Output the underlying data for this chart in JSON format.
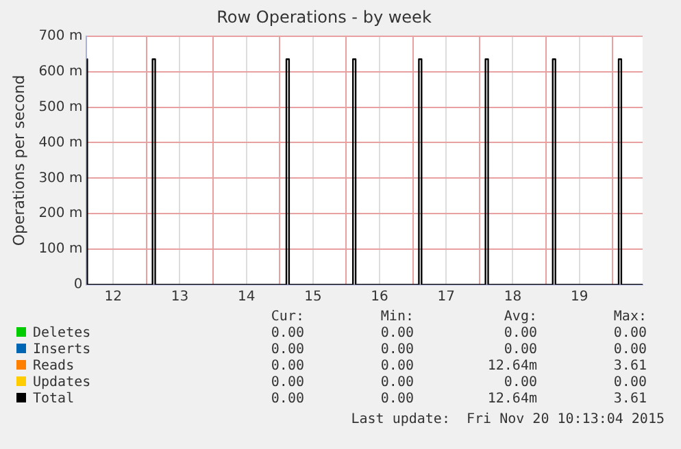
{
  "chart_data": {
    "type": "line",
    "title": "Row Operations - by week",
    "ylabel": "Operations per second",
    "xlim": [
      11.6,
      19.95
    ],
    "xticks": [
      12,
      {
        "value": 12.5,
        "label": null
      },
      13,
      {
        "value": 13.5,
        "label": null
      },
      14,
      {
        "value": 14.5,
        "label": null
      },
      15,
      {
        "value": 15.5,
        "label": null
      },
      16,
      {
        "value": 16.5,
        "label": null
      },
      17,
      {
        "value": 17.5,
        "label": null
      },
      18,
      {
        "value": 18.5,
        "label": null
      },
      19,
      {
        "value": 19.5,
        "label": null
      }
    ],
    "ylim": [
      0,
      700
    ],
    "yticks": [
      0,
      {
        "value": 100,
        "label": "100 m"
      },
      {
        "value": 200,
        "label": "200 m"
      },
      {
        "value": 300,
        "label": "300 m"
      },
      {
        "value": 400,
        "label": "400 m"
      },
      {
        "value": 500,
        "label": "500 m"
      },
      {
        "value": 600,
        "label": "600 m"
      },
      {
        "value": 700,
        "label": "700 m"
      }
    ],
    "grid": true,
    "legend": "bottom",
    "marker": "none",
    "line_style": "solid",
    "series": [
      {
        "name": "Deletes",
        "color": "#00cc00"
      },
      {
        "name": "Inserts",
        "color": "#0066b3"
      },
      {
        "name": "Reads",
        "color": "#ff8000"
      },
      {
        "name": "Updates",
        "color": "#ffcc00"
      },
      {
        "name": "Total",
        "color": "#000000",
        "x": [
          11.6,
          11.61,
          11.61,
          12.59,
          12.59,
          12.63,
          12.63,
          14.6,
          14.6,
          14.64,
          14.64,
          15.6,
          15.6,
          15.64,
          15.64,
          16.59,
          16.59,
          16.63,
          16.63,
          17.59,
          17.59,
          17.63,
          17.63,
          18.6,
          18.6,
          18.64,
          18.64,
          19.59,
          19.59,
          19.63,
          19.63,
          19.95
        ],
        "values": [
          635,
          635,
          0,
          0,
          635,
          635,
          0,
          0,
          635,
          635,
          0,
          0,
          635,
          635,
          0,
          0,
          635,
          635,
          0,
          0,
          635,
          635,
          0,
          0,
          635,
          635,
          0,
          0,
          635,
          635,
          0,
          0
        ]
      }
    ],
    "annotations": [
      "Cur:",
      "Min:",
      "Avg:",
      "Max:",
      "0.00",
      "0.00",
      "0.00",
      "0.00",
      "0.00",
      "0.00",
      "0.00",
      "0.00",
      "0.00",
      "0.00",
      "12.64m",
      "3.61",
      "0.00",
      "0.00",
      "0.00",
      "0.00",
      "0.00",
      "0.00",
      "12.64m",
      "3.61",
      "Last update:  Fri Nov 20 10:13:04 2015"
    ]
  }
}
